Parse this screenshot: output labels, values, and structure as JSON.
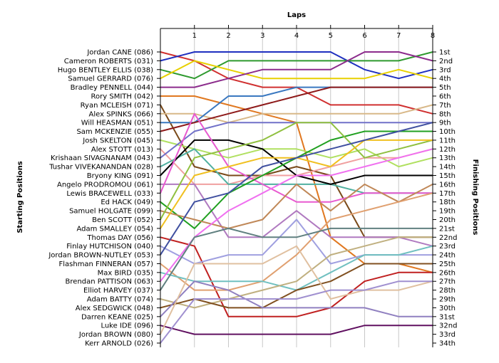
{
  "chart_data": {
    "type": "line",
    "title": "Laps",
    "ylabel": "Starting Positions",
    "y2label": "Finishing Positions",
    "x": [
      0,
      1,
      2,
      3,
      4,
      5,
      6,
      7,
      8
    ],
    "xlim": [
      0,
      8
    ],
    "xticks": [
      1,
      2,
      3,
      4,
      5,
      6,
      7,
      8
    ],
    "ylim": [
      1,
      34
    ],
    "y_inverted": true,
    "grid": "vertical",
    "start_labels": [
      "Jordan CANE (086)",
      "Cameron ROBERTS (031)",
      "Hugo BENTLEY ELLIS (038)",
      "Samuel GERRARD (076)",
      "Bradley PENNELL (044)",
      "Rory SMITH (042)",
      "Ryan MCLEISH (071)",
      "Alex SPINKS (066)",
      "Will HEASMAN (051)",
      "Sam MCKENZIE (055)",
      "Josh SKELTON (045)",
      "Alex STOTT (013)",
      "Krishaan SIVAGNANAM (043)",
      "Tushar VIVEKANANDAN (028)",
      "Bryony KING (091)",
      "Angelo PRODROMOU (061)",
      "Lewis BRACEWELL (033)",
      "Ed HACK (049)",
      "Samuel HOLGATE (099)",
      "Ben SCOTT (052)",
      "Adam SMALLEY (054)",
      "Thomas DAY (056)",
      "Finlay HUTCHISON (040)",
      "Jordan BROWN-NUTLEY (053)",
      "Flashman FINNERAN (057)",
      "Max BIRD (035)",
      "Brendan PATTISON (063)",
      "Elliot HARVEY (037)",
      "Adam BATTY (074)",
      "Alex SEDGWICK (048)",
      "Darren KEANE (025)",
      "Luke IDE (096)",
      "Jordan BROWN (080)",
      "Kerr ARNOLD (026)"
    ],
    "finish_labels": [
      "1st",
      "2nd",
      "3rd",
      "4th",
      "5th",
      "6th",
      "7th",
      "8th",
      "9th",
      "10th",
      "11th",
      "12th",
      "13th",
      "14th",
      "15th",
      "16th",
      "17th",
      "18th",
      "19th",
      "20th",
      "21st",
      "22nd",
      "23rd",
      "24th",
      "25th",
      "26th",
      "27th",
      "28th",
      "29th",
      "30th",
      "31st",
      "32nd",
      "33rd",
      "34th"
    ],
    "series": [
      {
        "color": "#d03030",
        "values": [
          1,
          2,
          4,
          5,
          5,
          7,
          7,
          7,
          8
        ]
      },
      {
        "color": "#1f2fbf",
        "values": [
          2,
          1,
          1,
          1,
          1,
          1,
          3,
          4,
          3
        ]
      },
      {
        "color": "#2f9a2f",
        "values": [
          3,
          4,
          2,
          2,
          2,
          2,
          2,
          2,
          1
        ]
      },
      {
        "color": "#e8d000",
        "values": [
          4,
          2,
          3,
          4,
          4,
          4,
          4,
          3,
          4
        ]
      },
      {
        "color": "#8c2c8c",
        "values": [
          5,
          5,
          4,
          3,
          3,
          3,
          1,
          1,
          2
        ]
      },
      {
        "color": "#e07820",
        "values": [
          6,
          6,
          7,
          8,
          9,
          22,
          25,
          25,
          26
        ]
      },
      {
        "color": "#7a4a1a",
        "values": [
          7,
          14,
          15,
          15,
          14,
          15,
          22,
          22,
          22
        ]
      },
      {
        "color": "#d8b888",
        "values": [
          8,
          8,
          9,
          8,
          8,
          8,
          8,
          8,
          7
        ]
      },
      {
        "color": "#3a78c0",
        "values": [
          9,
          9,
          6,
          6,
          5,
          5,
          5,
          5,
          5
        ]
      },
      {
        "color": "#8e1a1a",
        "values": [
          10,
          9,
          8,
          7,
          6,
          5,
          5,
          5,
          5
        ]
      },
      {
        "color": "#b0e060",
        "values": [
          11,
          12,
          13,
          12,
          12,
          13,
          12,
          14,
          13
        ]
      },
      {
        "color": "#f0a0a0",
        "values": [
          12,
          16,
          16,
          15,
          15,
          14,
          13,
          13,
          12
        ]
      },
      {
        "color": "#7070c8",
        "values": [
          13,
          10,
          9,
          9,
          9,
          9,
          9,
          9,
          9
        ]
      },
      {
        "color": "#50b0a0",
        "values": [
          14,
          12,
          16,
          16,
          16,
          16,
          17,
          17,
          17
        ]
      },
      {
        "color": "#000000",
        "values": [
          15,
          11,
          11,
          12,
          15,
          16,
          15,
          15,
          15
        ]
      },
      {
        "color": "#b07ac0",
        "values": [
          16,
          16,
          22,
          22,
          19,
          22,
          22,
          22,
          23
        ]
      },
      {
        "color": "#e85ad0",
        "values": [
          17,
          8,
          14,
          16,
          18,
          18,
          17,
          17,
          17
        ]
      },
      {
        "color": "#20a020",
        "values": [
          18,
          21,
          17,
          15,
          13,
          11,
          10,
          10,
          10
        ]
      },
      {
        "color": "#c08858",
        "values": [
          19,
          20,
          21,
          20,
          16,
          19,
          16,
          18,
          16
        ]
      },
      {
        "color": "#90c040",
        "values": [
          20,
          13,
          12,
          11,
          9,
          9,
          13,
          12,
          11
        ]
      },
      {
        "color": "#f0c020",
        "values": [
          21,
          15,
          14,
          13,
          13,
          14,
          11,
          11,
          11
        ]
      },
      {
        "color": "#c02020",
        "values": [
          22,
          23,
          31,
          31,
          31,
          30,
          27,
          26,
          26
        ]
      },
      {
        "color": "#a0a0e0",
        "values": [
          23,
          25,
          24,
          24,
          20,
          25,
          24,
          24,
          24
        ]
      },
      {
        "color": "#4050a0",
        "values": [
          24,
          18,
          17,
          14,
          13,
          12,
          11,
          10,
          9
        ]
      },
      {
        "color": "#e0a070",
        "values": [
          25,
          28,
          28,
          27,
          24,
          20,
          19,
          18,
          17
        ]
      },
      {
        "color": "#70c0c0",
        "values": [
          26,
          27,
          27,
          27,
          28,
          26,
          24,
          24,
          23
        ]
      },
      {
        "color": "#f070f0",
        "values": [
          27,
          22,
          19,
          17,
          15,
          15,
          14,
          13,
          12
        ]
      },
      {
        "color": "#608080",
        "values": [
          28,
          22,
          21,
          22,
          22,
          21,
          21,
          21,
          21
        ]
      },
      {
        "color": "#c0b080",
        "values": [
          29,
          30,
          29,
          28,
          27,
          24,
          23,
          22,
          22
        ]
      },
      {
        "color": "#805020",
        "values": [
          30,
          29,
          30,
          30,
          28,
          27,
          25,
          25,
          25
        ]
      },
      {
        "color": "#9080c0",
        "values": [
          31,
          27,
          28,
          30,
          30,
          30,
          30,
          31,
          31
        ]
      },
      {
        "color": "#601060",
        "values": [
          32,
          33,
          33,
          33,
          33,
          33,
          32,
          32,
          32
        ]
      },
      {
        "color": "#e0c0a0",
        "values": [
          33,
          25,
          25,
          25,
          23,
          29,
          28,
          28,
          27
        ]
      },
      {
        "color": "#a090d0",
        "values": [
          34,
          29,
          29,
          29,
          29,
          28,
          28,
          27,
          27
        ]
      }
    ]
  }
}
